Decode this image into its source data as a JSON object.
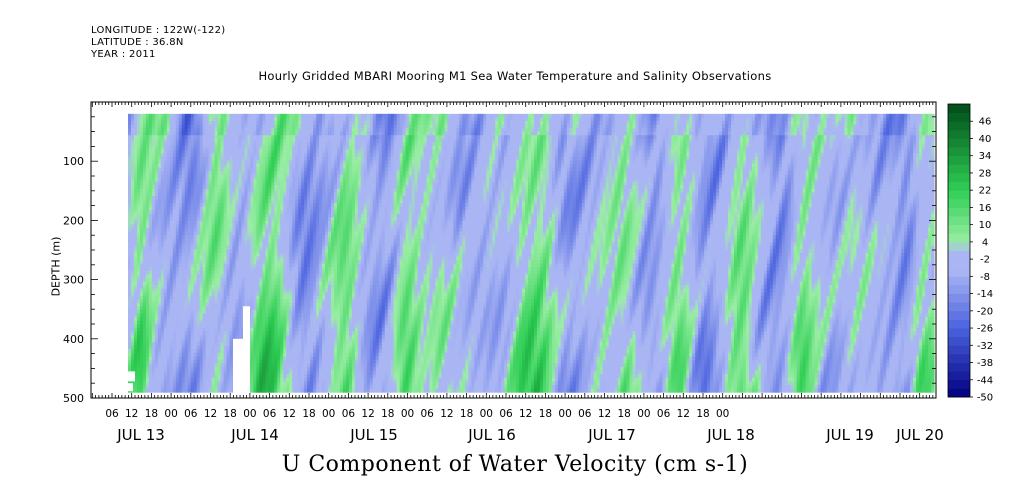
{
  "header": {
    "longitude": "LONGITUDE : 122W(-122)",
    "latitude": "LATITUDE : 36.8N",
    "year": "YEAR : 2011"
  },
  "chart_data": {
    "type": "heatmap",
    "title": "Hourly Gridded MBARI Mooring M1 Sea Water Temperature and Salinity Observations",
    "xlabel": "U Component of Water Velocity (cm s-1)",
    "ylabel": "DEPTH (m)",
    "y_ticks": [
      100,
      200,
      300,
      400,
      500
    ],
    "ylim": [
      500,
      0
    ],
    "data_depth_range": [
      20,
      490
    ],
    "hour_ticks": [
      "06",
      "12",
      "18",
      "00",
      "06",
      "12",
      "18",
      "00",
      "06",
      "12",
      "18",
      "00",
      "06",
      "12",
      "18",
      "00",
      "06",
      "12",
      "18",
      "00",
      "06",
      "12",
      "18",
      "00",
      "06",
      "12",
      "18",
      "00",
      "06",
      "12",
      "18",
      "00"
    ],
    "day_labels": [
      "JUL 13",
      "JUL 14",
      "JUL 15",
      "JUL 16",
      "JUL 17",
      "JUL 18",
      "JUL 19",
      "JUL 20"
    ],
    "colorbar_labels": [
      "46",
      "40",
      "34",
      "28",
      "22",
      "16",
      "10",
      "4",
      "-2",
      "-8",
      "-14",
      "-20",
      "-26",
      "-32",
      "-38",
      "-44",
      "-50"
    ],
    "colorbar_range": [
      -50,
      52
    ],
    "colorbar_step": 3,
    "colors": {
      "strong_negative": "#000080",
      "negative": "#4a62de",
      "weak_negative": "#aab6f4",
      "weak_positive": "#9aeea4",
      "positive": "#2ece54",
      "strong_positive": "#004d1a"
    }
  }
}
